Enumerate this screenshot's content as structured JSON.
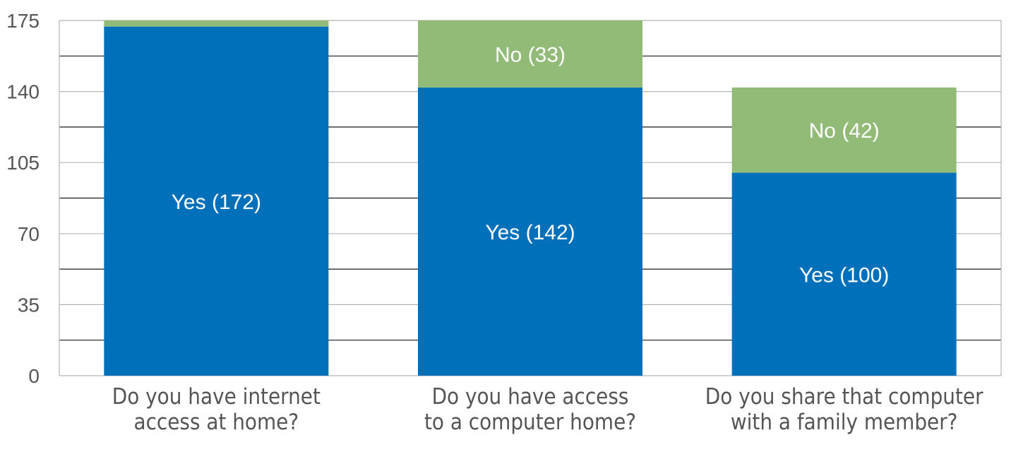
{
  "chart_data": {
    "type": "bar",
    "stacked": true,
    "categories": [
      [
        "Do you have internet",
        "access at home?"
      ],
      [
        "Do you have access",
        "to a computer home?"
      ],
      [
        "Do you share that computer",
        "with a family member?"
      ]
    ],
    "series": [
      {
        "key": "yes",
        "color": "#0070BA",
        "values": [
          172,
          142,
          100
        ],
        "labels": [
          "Yes (172)",
          "Yes (142)",
          "Yes (100)"
        ]
      },
      {
        "key": "no",
        "color": "#93BB78",
        "values": [
          3,
          33,
          42
        ],
        "labels": [
          "",
          "No (33)",
          "No (42)"
        ]
      }
    ],
    "yticks": [
      0,
      35,
      70,
      105,
      140,
      175
    ],
    "ylim": [
      0,
      175
    ],
    "grid": true,
    "title": "",
    "xlabel": "",
    "ylabel": ""
  }
}
